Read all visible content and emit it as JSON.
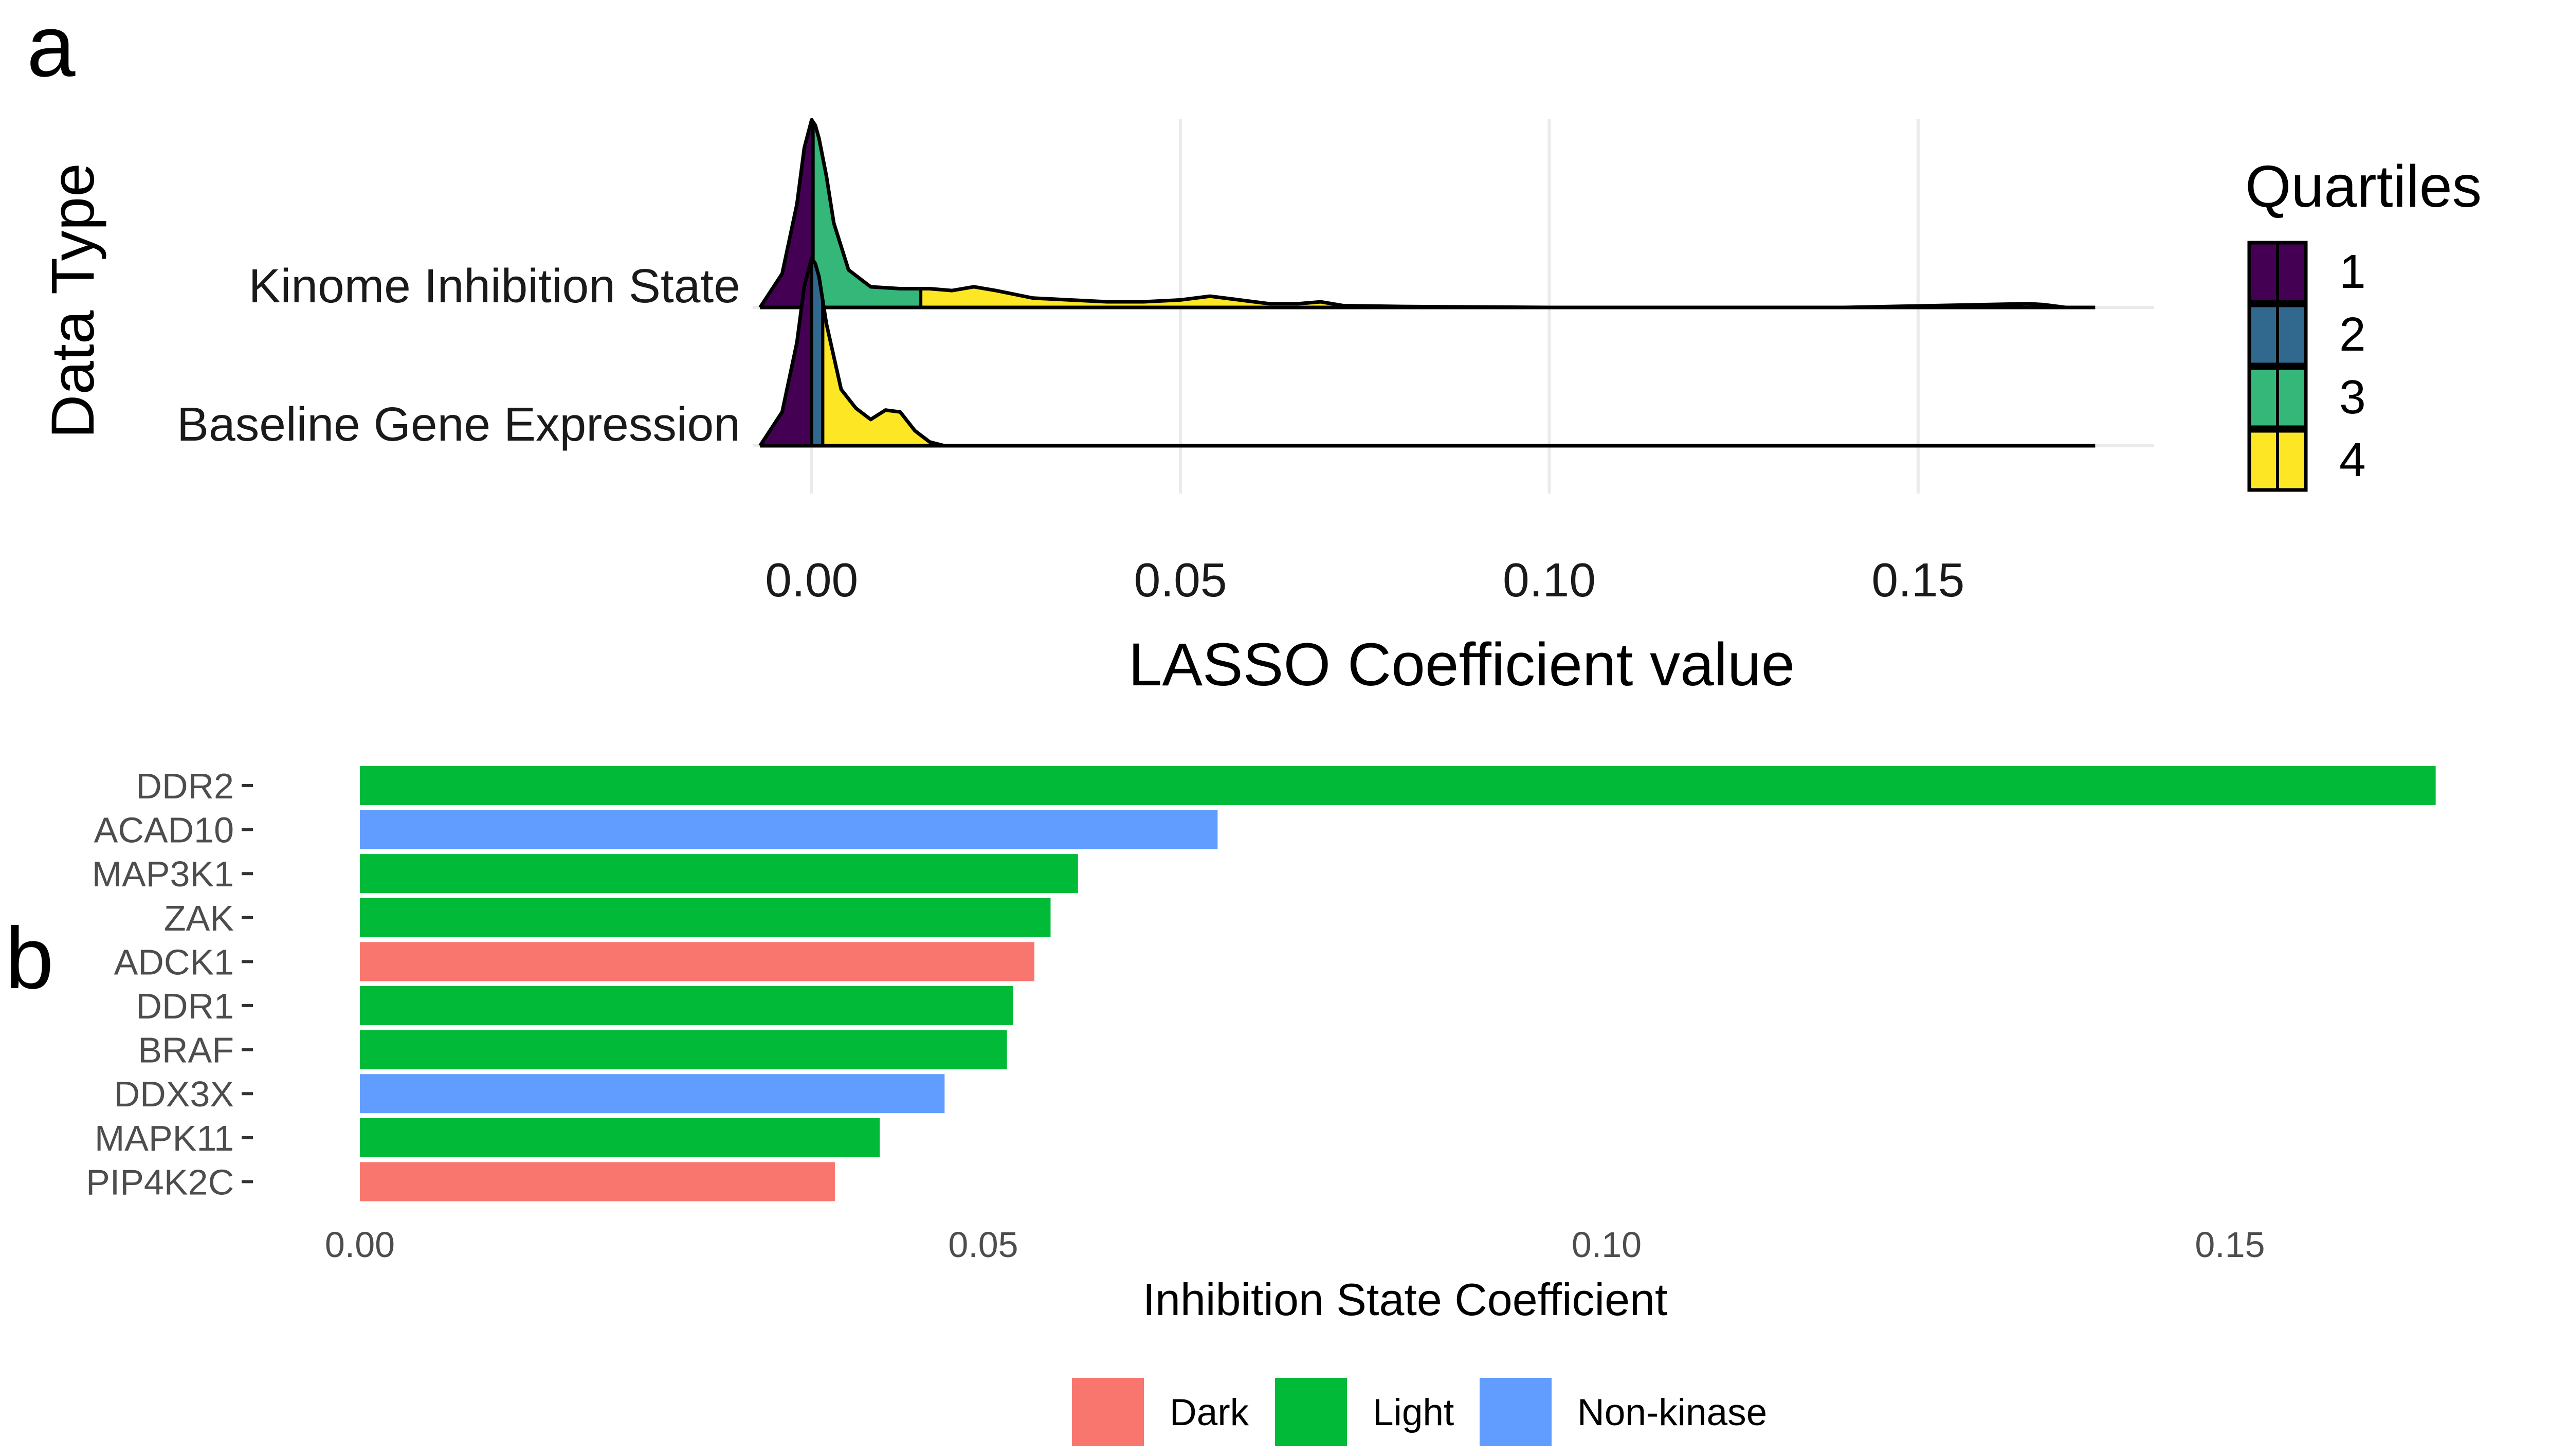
{
  "panel_labels": {
    "a": "a",
    "b": "b"
  },
  "chart_data": [
    {
      "type": "ridgeline",
      "panel": "a",
      "xlabel": "LASSO Coefficient value",
      "ylabel": "Data Type",
      "xlim": [
        -0.008,
        0.182
      ],
      "xticks": [
        0.0,
        0.05,
        0.1,
        0.15
      ],
      "xtick_labels": [
        "0.00",
        "0.05",
        "0.10",
        "0.15"
      ],
      "grid": true,
      "categories": [
        "Kinome Inhibition State",
        "Baseline Gene Expression"
      ],
      "legend": {
        "title": "Quartiles",
        "position": "right",
        "entries": [
          {
            "label": "1",
            "color": "#440154"
          },
          {
            "label": "2",
            "color": "#31688e"
          },
          {
            "label": "3",
            "color": "#35b779"
          },
          {
            "label": "4",
            "color": "#fde725"
          }
        ]
      },
      "series": [
        {
          "category": "Kinome Inhibition State",
          "quartile_cuts": [
            0.0001,
            0.0002,
            0.0148
          ],
          "density_x": [
            -0.007,
            -0.004,
            -0.002,
            -0.001,
            0.0,
            0.0005,
            0.001,
            0.002,
            0.003,
            0.005,
            0.008,
            0.012,
            0.016,
            0.019,
            0.022,
            0.025,
            0.03,
            0.035,
            0.04,
            0.045,
            0.05,
            0.054,
            0.058,
            0.062,
            0.066,
            0.069,
            0.072,
            0.08,
            0.1,
            0.14,
            0.165,
            0.167,
            0.17,
            0.174
          ],
          "density_y": [
            0.0,
            0.18,
            0.55,
            0.85,
            1.0,
            0.97,
            0.9,
            0.7,
            0.45,
            0.2,
            0.11,
            0.1,
            0.1,
            0.09,
            0.11,
            0.09,
            0.05,
            0.04,
            0.03,
            0.03,
            0.04,
            0.06,
            0.04,
            0.02,
            0.02,
            0.03,
            0.01,
            0.005,
            0.0,
            0.0,
            0.02,
            0.015,
            0.0,
            0.0
          ]
        },
        {
          "category": "Baseline Gene Expression",
          "quartile_cuts": [
            0.0,
            0.0015,
            0.0015
          ],
          "density_x": [
            -0.007,
            -0.004,
            -0.002,
            -0.001,
            0.0,
            0.0005,
            0.001,
            0.002,
            0.004,
            0.006,
            0.008,
            0.01,
            0.012,
            0.014,
            0.016,
            0.018,
            0.025,
            0.174
          ],
          "density_y": [
            0.0,
            0.18,
            0.55,
            0.85,
            1.0,
            0.97,
            0.9,
            0.65,
            0.3,
            0.2,
            0.14,
            0.19,
            0.18,
            0.08,
            0.02,
            0.0,
            0.0,
            0.0
          ]
        }
      ]
    },
    {
      "type": "bar",
      "panel": "b",
      "orientation": "horizontal",
      "xlabel": "Inhibition State Coefficient",
      "ylabel": "",
      "xlim": [
        0.0,
        0.168
      ],
      "xticks": [
        0.0,
        0.05,
        0.1,
        0.15
      ],
      "xtick_labels": [
        "0.00",
        "0.05",
        "0.10",
        "0.15"
      ],
      "categories": [
        "DDR2",
        "ACAD10",
        "MAP3K1",
        "ZAK",
        "ADCK1",
        "DDR1",
        "BRAF",
        "DDX3X",
        "MAPK11",
        "PIP4K2C"
      ],
      "values": [
        0.1665,
        0.0688,
        0.0576,
        0.0554,
        0.0541,
        0.0524,
        0.0519,
        0.0469,
        0.0417,
        0.0381
      ],
      "groups": [
        "Light",
        "Non-kinase",
        "Light",
        "Light",
        "Dark",
        "Light",
        "Light",
        "Non-kinase",
        "Light",
        "Dark"
      ],
      "legend": {
        "position": "bottom",
        "entries": [
          {
            "label": "Dark",
            "color": "#f8766d"
          },
          {
            "label": "Light",
            "color": "#00ba38"
          },
          {
            "label": "Non-kinase",
            "color": "#619cff"
          }
        ]
      }
    }
  ]
}
